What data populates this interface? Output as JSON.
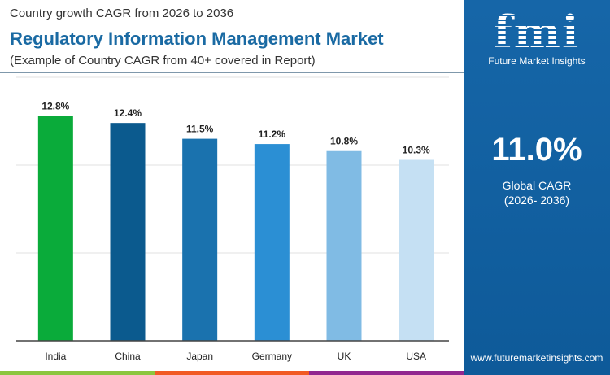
{
  "header": {
    "subtitle": "Country growth CAGR from 2026 to 2036",
    "title": "Regulatory Information Management Market",
    "note": "(Example of Country CAGR from 40+ covered in Report)"
  },
  "panel": {
    "logo_text": "fmi",
    "brand": "Future Market Insights",
    "global_value": "11.0%",
    "global_label": "Global CAGR",
    "global_period": "(2026- 2036)",
    "url": "www.futuremarketinsights.com",
    "background": "#1666a8"
  },
  "stripes": [
    "#8cc63f",
    "#f15a24",
    "#92278f"
  ],
  "chart_data": {
    "type": "bar",
    "categories": [
      "India",
      "China",
      "Japan",
      "Germany",
      "UK",
      "USA"
    ],
    "values": [
      12.8,
      12.4,
      11.5,
      11.2,
      10.8,
      10.3
    ],
    "labels": [
      "12.8%",
      "12.4%",
      "11.5%",
      "11.2%",
      "10.8%",
      "10.3%"
    ],
    "colors": [
      "#0aab3a",
      "#0b5a8e",
      "#1a72ae",
      "#2b8fd4",
      "#80bbe4",
      "#c5e0f3"
    ],
    "ylim": [
      0,
      15
    ],
    "grid": true,
    "gridlines": [
      5,
      10,
      15
    ]
  }
}
